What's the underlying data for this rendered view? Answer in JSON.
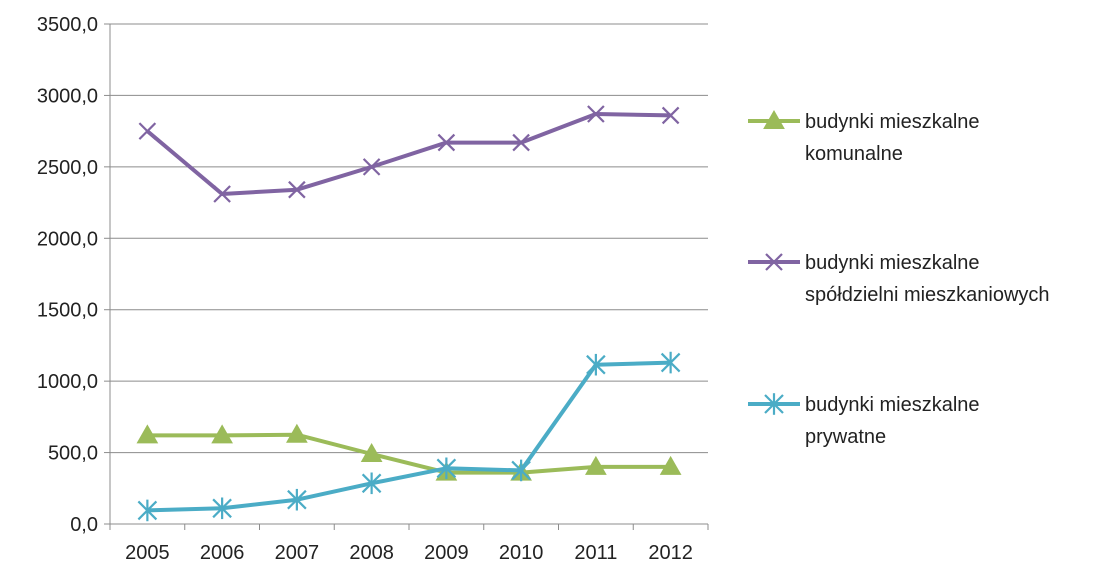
{
  "chart_data": {
    "type": "line",
    "categories": [
      "2005",
      "2006",
      "2007",
      "2008",
      "2009",
      "2010",
      "2011",
      "2012"
    ],
    "ylim": [
      0,
      3500
    ],
    "yticks": [
      0,
      500,
      1000,
      1500,
      2000,
      2500,
      3000,
      3500
    ],
    "ytick_labels": [
      "0,0",
      "500,0",
      "1000,0",
      "1500,0",
      "2000,0",
      "2500,0",
      "3000,0",
      "3500,0"
    ],
    "grid": true,
    "legend_position": "right",
    "series": [
      {
        "name": "budynki mieszkalne komunalne",
        "legend_lines": [
          "budynki mieszkalne",
          "komunalne"
        ],
        "color": "#9bbb59",
        "marker": "triangle",
        "values": [
          620,
          620,
          625,
          490,
          360,
          360,
          400,
          400
        ]
      },
      {
        "name": "budynki mieszkalne spółdzielni mieszkaniowych",
        "legend_lines": [
          "budynki mieszkalne",
          "spółdzielni mieszkaniowych"
        ],
        "color": "#8064a2",
        "marker": "x",
        "values": [
          2750,
          2310,
          2340,
          2500,
          2670,
          2670,
          2870,
          2860
        ]
      },
      {
        "name": "budynki mieszkalne prywatne",
        "legend_lines": [
          "budynki mieszkalne",
          "prywatne"
        ],
        "color": "#4bacc6",
        "marker": "asterisk",
        "values": [
          95,
          110,
          170,
          285,
          390,
          375,
          1115,
          1130
        ]
      }
    ]
  }
}
